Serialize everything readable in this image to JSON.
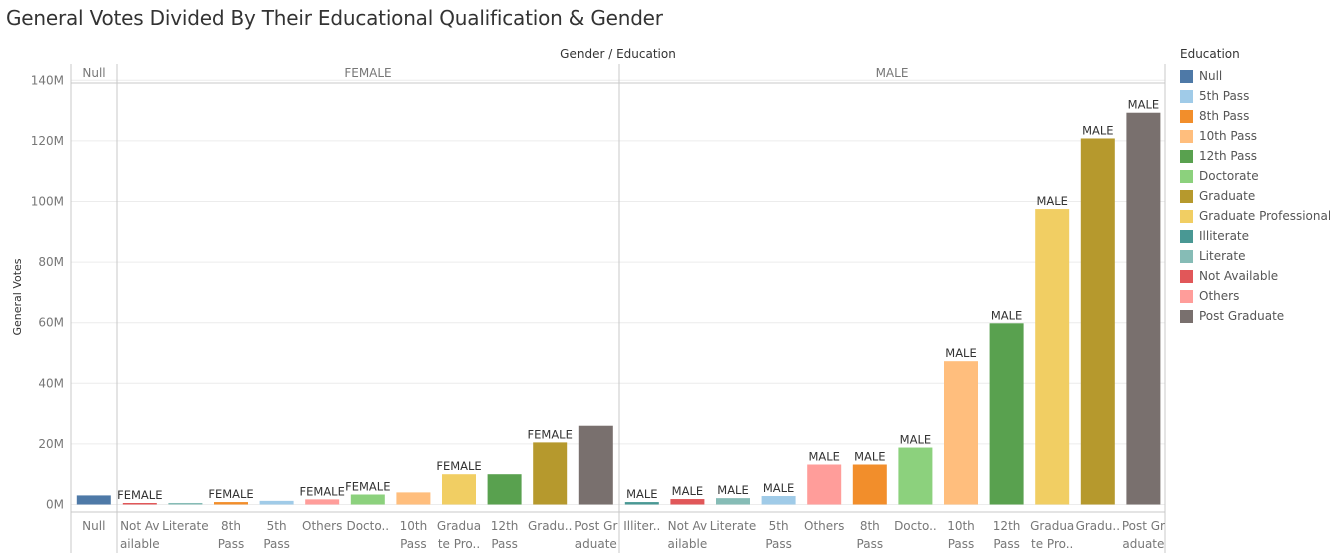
{
  "title": "General Votes Divided By Their Educational Qualification & Gender",
  "colors": {
    "Null": "#4e79a7",
    "5th Pass": "#a0cbe8",
    "8th Pass": "#f28e2b",
    "10th Pass": "#ffbe7d",
    "12th Pass": "#59a14f",
    "Doctorate": "#8cd17d",
    "Graduate": "#b6992d",
    "Graduate Professional": "#f1ce63",
    "Illiterate": "#499894",
    "Literate": "#86bcb6",
    "Not Available": "#e15759",
    "Others": "#ff9d9a",
    "Post Graduate": "#79706e"
  },
  "legend": {
    "title": "Education",
    "items": [
      "Null",
      "5th Pass",
      "8th Pass",
      "10th Pass",
      "12th Pass",
      "Doctorate",
      "Graduate",
      "Graduate Professional",
      "Illiterate",
      "Literate",
      "Not Available",
      "Others",
      "Post Graduate"
    ]
  },
  "chart_data": {
    "type": "bar",
    "title": "General Votes Divided By Their Educational Qualification & Gender",
    "column_header": "Gender / Education",
    "ylabel": "General Votes",
    "ylim": [
      0,
      145
    ],
    "y_unit": "M",
    "y_ticks": [
      "0M",
      "20M",
      "40M",
      "60M",
      "80M",
      "100M",
      "120M",
      "140M"
    ],
    "grid": true,
    "legend_position": "right",
    "panes": [
      {
        "gender": "Null",
        "bars": [
          {
            "education": "Null",
            "tick_label": [
              "Null"
            ],
            "value": 3,
            "data_label": ""
          }
        ]
      },
      {
        "gender": "FEMALE",
        "bars": [
          {
            "education": "Not Available",
            "tick_label": [
              "Not Av",
              "ailable"
            ],
            "value": 0.1,
            "data_label": "FEMALE"
          },
          {
            "education": "Literate",
            "tick_label": [
              "Literate"
            ],
            "value": 0.5,
            "data_label": ""
          },
          {
            "education": "8th Pass",
            "tick_label": [
              "8th",
              "Pass"
            ],
            "value": 0.8,
            "data_label": "FEMALE"
          },
          {
            "education": "5th Pass",
            "tick_label": [
              "5th",
              "Pass"
            ],
            "value": 1.2,
            "data_label": ""
          },
          {
            "education": "Others",
            "tick_label": [
              "Others"
            ],
            "value": 1.7,
            "data_label": "FEMALE"
          },
          {
            "education": "Doctorate",
            "tick_label": [
              "Docto.."
            ],
            "value": 3.3,
            "data_label": "FEMALE"
          },
          {
            "education": "10th Pass",
            "tick_label": [
              "10th",
              "Pass"
            ],
            "value": 4,
            "data_label": ""
          },
          {
            "education": "Graduate Professional",
            "tick_label": [
              "Gradua",
              "te Pro.."
            ],
            "value": 10,
            "data_label": "FEMALE"
          },
          {
            "education": "12th Pass",
            "tick_label": [
              "12th",
              "Pass"
            ],
            "value": 10,
            "data_label": ""
          },
          {
            "education": "Graduate",
            "tick_label": [
              "Gradu.."
            ],
            "value": 20.5,
            "data_label": "FEMALE"
          },
          {
            "education": "Post Graduate",
            "tick_label": [
              "Post Gr",
              "aduate"
            ],
            "value": 26,
            "data_label": ""
          }
        ]
      },
      {
        "gender": "MALE",
        "bars": [
          {
            "education": "Illiterate",
            "tick_label": [
              "Illiter.."
            ],
            "value": 0.8,
            "data_label": "MALE"
          },
          {
            "education": "Not Available",
            "tick_label": [
              "Not Av",
              "ailable"
            ],
            "value": 1.8,
            "data_label": "MALE"
          },
          {
            "education": "Literate",
            "tick_label": [
              "Literate"
            ],
            "value": 2.1,
            "data_label": "MALE"
          },
          {
            "education": "5th Pass",
            "tick_label": [
              "5th",
              "Pass"
            ],
            "value": 2.8,
            "data_label": "MALE"
          },
          {
            "education": "Others",
            "tick_label": [
              "Others"
            ],
            "value": 13.2,
            "data_label": "MALE"
          },
          {
            "education": "8th Pass",
            "tick_label": [
              "8th",
              "Pass"
            ],
            "value": 13.2,
            "data_label": "MALE"
          },
          {
            "education": "Doctorate",
            "tick_label": [
              "Docto.."
            ],
            "value": 18.8,
            "data_label": "MALE"
          },
          {
            "education": "10th Pass",
            "tick_label": [
              "10th",
              "Pass"
            ],
            "value": 47.3,
            "data_label": "MALE"
          },
          {
            "education": "12th Pass",
            "tick_label": [
              "12th",
              "Pass"
            ],
            "value": 59.8,
            "data_label": "MALE"
          },
          {
            "education": "Graduate Professional",
            "tick_label": [
              "Gradua",
              "te Pro.."
            ],
            "value": 97.5,
            "data_label": "MALE"
          },
          {
            "education": "Graduate",
            "tick_label": [
              "Gradu.."
            ],
            "value": 120.8,
            "data_label": "MALE"
          },
          {
            "education": "Post Graduate",
            "tick_label": [
              "Post Gr",
              "aduate"
            ],
            "value": 129.3,
            "data_label": "MALE"
          }
        ]
      }
    ]
  }
}
